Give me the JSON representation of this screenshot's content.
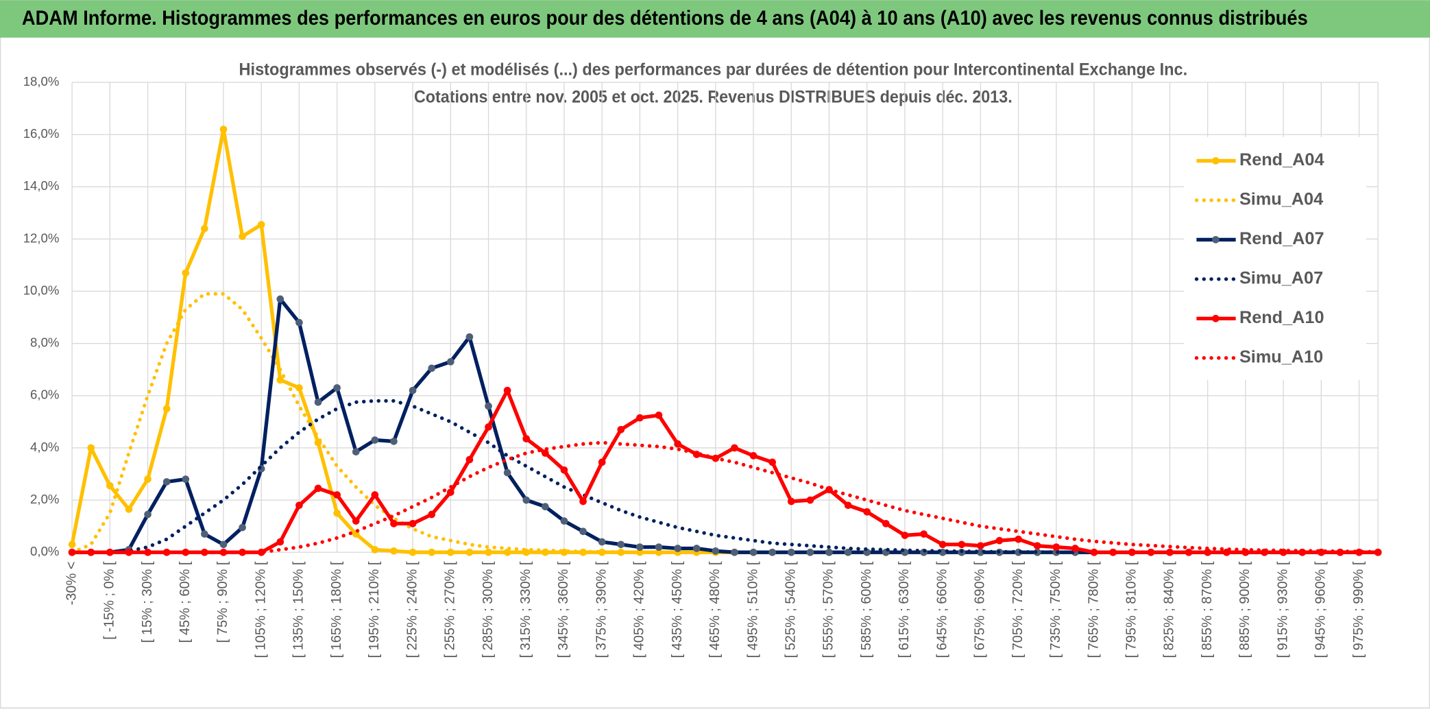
{
  "header": {
    "title": "ADAM Informe. Histogrammes des performances en euros pour des détentions de 4 ans (A04) à 10 ans (A10) avec les revenus connus distribués"
  },
  "chart_data": {
    "type": "line",
    "title": "Histogrammes observés (-) et modélisés (...) des performances par durées de détention pour Intercontinental Exchange Inc.",
    "subtitle": "Cotations entre nov. 2005 et oct. 2025. Revenus DISTRIBUES depuis déc. 2013.",
    "categories": [
      "-30% <",
      null,
      "[ -15% ; 0% [",
      null,
      "[ 15% ; 30% [",
      null,
      "[ 45% ; 60% [",
      null,
      "[ 75% ; 90% [",
      null,
      "[ 105% ; 120% [",
      null,
      "[ 135% ; 150% [",
      null,
      "[ 165% ; 180% [",
      null,
      "[ 195% ; 210% [",
      null,
      "[ 225% ; 240% [",
      null,
      "[ 255% ; 270% [",
      null,
      "[ 285% ; 300% [",
      null,
      "[ 315% ; 330% [",
      null,
      "[ 345% ; 360% [",
      null,
      "[ 375% ; 390% [",
      null,
      "[ 405% ; 420% [",
      null,
      "[ 435% ; 450% [",
      null,
      "[ 465% ; 480% [",
      null,
      "[ 495% ; 510% [",
      null,
      "[ 525% ; 540% [",
      null,
      "[ 555% ; 570% [",
      null,
      "[ 585% ; 600% [",
      null,
      "[ 615% ; 630% [",
      null,
      "[ 645% ; 660% [",
      null,
      "[ 675% ; 690% [",
      null,
      "[ 705% ; 720% [",
      null,
      "[ 735% ; 750% [",
      null,
      "[ 765% ; 780% [",
      null,
      "[ 795% ; 810% [",
      null,
      "[ 825% ; 840% [",
      null,
      "[ 855% ; 870% [",
      null,
      "[ 885% ; 900% [",
      null,
      "[ 915% ; 930% [",
      null,
      "[ 945% ; 960% [",
      null,
      "[ 975% ; 990% [",
      null
    ],
    "ylim": [
      0,
      18
    ],
    "yticks": [
      {
        "value": 0,
        "label": "0,0%"
      },
      {
        "value": 2,
        "label": "2,0%"
      },
      {
        "value": 4,
        "label": "4,0%"
      },
      {
        "value": 6,
        "label": "6,0%"
      },
      {
        "value": 8,
        "label": "8,0%"
      },
      {
        "value": 10,
        "label": "10,0%"
      },
      {
        "value": 12,
        "label": "12,0%"
      },
      {
        "value": 14,
        "label": "14,0%"
      },
      {
        "value": 16,
        "label": "16,0%"
      },
      {
        "value": 18,
        "label": "18,0%"
      }
    ],
    "grid": true,
    "legend": "right",
    "series": [
      {
        "name": "Rend_A04",
        "color": "#ffc000",
        "marker": true,
        "values": [
          0.3,
          4.0,
          2.55,
          1.65,
          2.8,
          5.5,
          10.7,
          12.4,
          16.2,
          12.1,
          12.55,
          6.6,
          6.3,
          4.2,
          1.5,
          0.7,
          0.1,
          0.05,
          0,
          0,
          0,
          0,
          0,
          0,
          0,
          0,
          0,
          0,
          0,
          0,
          0,
          0,
          0,
          0,
          0,
          0,
          0,
          0,
          0,
          0,
          0,
          0,
          0,
          0,
          0,
          0,
          0,
          0,
          0,
          0,
          0,
          0,
          0,
          0,
          0,
          0,
          0,
          0,
          0,
          0,
          0,
          0,
          0,
          0,
          0,
          0,
          0,
          0,
          0,
          0
        ]
      },
      {
        "name": "Simu_A04",
        "color": "#ffc000",
        "dash": "dotted",
        "values": [
          0,
          0.3,
          1.5,
          3.8,
          6.0,
          8.0,
          9.3,
          9.9,
          9.9,
          9.3,
          8.2,
          7.0,
          5.6,
          4.4,
          3.3,
          2.5,
          1.8,
          1.3,
          0.9,
          0.6,
          0.45,
          0.3,
          0.2,
          0.15,
          0.1,
          0.08,
          0.05,
          0.03,
          0.02,
          0.01,
          0,
          0,
          0,
          0,
          0,
          0,
          0,
          0,
          0,
          0,
          0,
          0,
          0,
          0,
          0,
          0,
          0,
          0,
          0,
          0,
          0,
          0,
          0,
          0,
          0,
          0,
          0,
          0,
          0,
          0,
          0,
          0,
          0,
          0,
          0,
          0,
          0,
          0,
          0,
          0
        ]
      },
      {
        "name": "Rend_A07",
        "color": "#002060",
        "marker": true,
        "marker_color": "#4f5f78",
        "values": [
          0,
          0,
          0,
          0.1,
          1.45,
          2.7,
          2.8,
          0.7,
          0.3,
          0.95,
          3.2,
          9.7,
          8.8,
          5.75,
          6.3,
          3.85,
          4.3,
          4.25,
          6.2,
          7.05,
          7.3,
          8.25,
          5.6,
          3.05,
          2.0,
          1.75,
          1.2,
          0.8,
          0.4,
          0.3,
          0.2,
          0.2,
          0.15,
          0.15,
          0.05,
          0,
          0,
          0,
          0,
          0,
          0,
          0,
          0,
          0,
          0,
          0,
          0,
          0,
          0,
          0,
          0,
          0,
          0,
          0,
          0,
          0,
          0,
          0,
          0,
          0,
          0,
          0,
          0,
          0,
          0,
          0,
          0,
          0,
          0,
          0
        ]
      },
      {
        "name": "Simu_A07",
        "color": "#002060",
        "dash": "dotted",
        "values": [
          0,
          0,
          0,
          0.05,
          0.2,
          0.5,
          1.0,
          1.5,
          2.0,
          2.6,
          3.3,
          4.0,
          4.6,
          5.1,
          5.5,
          5.75,
          5.8,
          5.8,
          5.6,
          5.3,
          5.0,
          4.6,
          4.2,
          3.7,
          3.3,
          2.9,
          2.5,
          2.2,
          1.9,
          1.6,
          1.35,
          1.15,
          0.95,
          0.8,
          0.65,
          0.55,
          0.45,
          0.35,
          0.3,
          0.25,
          0.2,
          0.15,
          0.12,
          0.1,
          0.08,
          0.06,
          0.05,
          0.04,
          0.03,
          0.02,
          0.02,
          0.01,
          0.01,
          0,
          0,
          0,
          0,
          0,
          0,
          0,
          0,
          0,
          0,
          0,
          0,
          0,
          0,
          0,
          0,
          0
        ]
      },
      {
        "name": "Rend_A10",
        "color": "#ff0000",
        "marker": true,
        "values": [
          0,
          0,
          0,
          0,
          0,
          0,
          0,
          0,
          0,
          0,
          0,
          0.4,
          1.8,
          2.45,
          2.2,
          1.2,
          2.2,
          1.1,
          1.1,
          1.45,
          2.3,
          3.55,
          4.8,
          6.2,
          4.35,
          3.8,
          3.15,
          1.95,
          3.45,
          4.7,
          5.15,
          5.25,
          4.15,
          3.75,
          3.6,
          4.0,
          3.7,
          3.45,
          1.95,
          2.0,
          2.4,
          1.8,
          1.55,
          1.1,
          0.65,
          0.7,
          0.3,
          0.3,
          0.25,
          0.45,
          0.5,
          0.25,
          0.2,
          0.15,
          0,
          0,
          0,
          0,
          0,
          0,
          0,
          0,
          0,
          0,
          0,
          0,
          0,
          0,
          0,
          0
        ]
      },
      {
        "name": "Simu_A10",
        "color": "#ff0000",
        "dash": "dotted",
        "values": [
          0,
          0,
          0,
          0,
          0,
          0,
          0,
          0,
          0,
          0,
          0,
          0.1,
          0.2,
          0.35,
          0.55,
          0.8,
          1.1,
          1.4,
          1.75,
          2.1,
          2.5,
          2.9,
          3.25,
          3.55,
          3.8,
          3.95,
          4.05,
          4.15,
          4.2,
          4.15,
          4.1,
          4.05,
          3.95,
          3.8,
          3.6,
          3.45,
          3.25,
          3.05,
          2.85,
          2.65,
          2.4,
          2.2,
          2.0,
          1.8,
          1.6,
          1.45,
          1.3,
          1.15,
          1.0,
          0.9,
          0.8,
          0.7,
          0.6,
          0.5,
          0.42,
          0.36,
          0.3,
          0.26,
          0.22,
          0.18,
          0.15,
          0.12,
          0.1,
          0.08,
          0.07,
          0.06,
          0.05,
          0.04,
          0.03,
          0.02
        ]
      }
    ]
  }
}
